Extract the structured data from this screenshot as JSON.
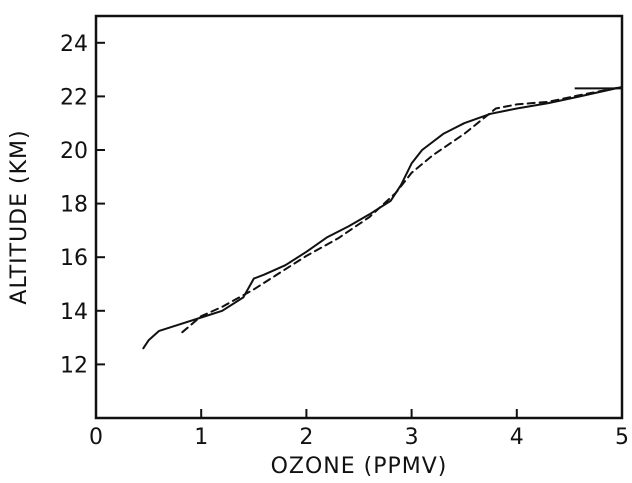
{
  "chart_data": {
    "type": "line",
    "title": "",
    "xlabel": "OZONE (PPMV)",
    "ylabel": "ALTITUDE (KM)",
    "xlim": [
      0,
      5
    ],
    "ylim": [
      10,
      25
    ],
    "x_ticks": [
      0,
      1,
      2,
      3,
      4,
      5
    ],
    "y_ticks": [
      12,
      14,
      16,
      18,
      20,
      22,
      24
    ],
    "grid": false,
    "legend": "none",
    "series": [
      {
        "style": "solid",
        "color": "#111111",
        "points": [
          [
            0.45,
            12.6
          ],
          [
            0.5,
            12.9
          ],
          [
            0.6,
            13.25
          ],
          [
            0.8,
            13.5
          ],
          [
            1.0,
            13.75
          ],
          [
            1.2,
            14.0
          ],
          [
            1.4,
            14.5
          ],
          [
            1.5,
            15.2
          ],
          [
            1.6,
            15.35
          ],
          [
            1.8,
            15.7
          ],
          [
            2.0,
            16.2
          ],
          [
            2.2,
            16.75
          ],
          [
            2.4,
            17.15
          ],
          [
            2.6,
            17.6
          ],
          [
            2.8,
            18.1
          ],
          [
            2.9,
            18.7
          ],
          [
            3.0,
            19.5
          ],
          [
            3.1,
            20.0
          ],
          [
            3.3,
            20.6
          ],
          [
            3.5,
            21.0
          ],
          [
            3.75,
            21.35
          ],
          [
            4.0,
            21.55
          ],
          [
            4.3,
            21.75
          ],
          [
            4.6,
            22.0
          ],
          [
            5.0,
            22.35
          ]
        ]
      },
      {
        "style": "dashed",
        "color": "#111111",
        "points": [
          [
            0.82,
            13.2
          ],
          [
            1.0,
            13.8
          ],
          [
            1.2,
            14.15
          ],
          [
            1.5,
            14.8
          ],
          [
            1.7,
            15.3
          ],
          [
            2.0,
            16.05
          ],
          [
            2.3,
            16.7
          ],
          [
            2.6,
            17.5
          ],
          [
            2.85,
            18.4
          ],
          [
            3.0,
            19.15
          ],
          [
            3.2,
            19.8
          ],
          [
            3.5,
            20.6
          ],
          [
            3.8,
            21.55
          ],
          [
            4.0,
            21.7
          ],
          [
            4.3,
            21.8
          ],
          [
            4.6,
            22.05
          ],
          [
            5.0,
            22.35
          ]
        ]
      }
    ],
    "annotations": [
      {
        "type": "segment",
        "x1": 4.55,
        "x2": 5.0,
        "y": 22.3,
        "color": "#111111"
      }
    ]
  }
}
